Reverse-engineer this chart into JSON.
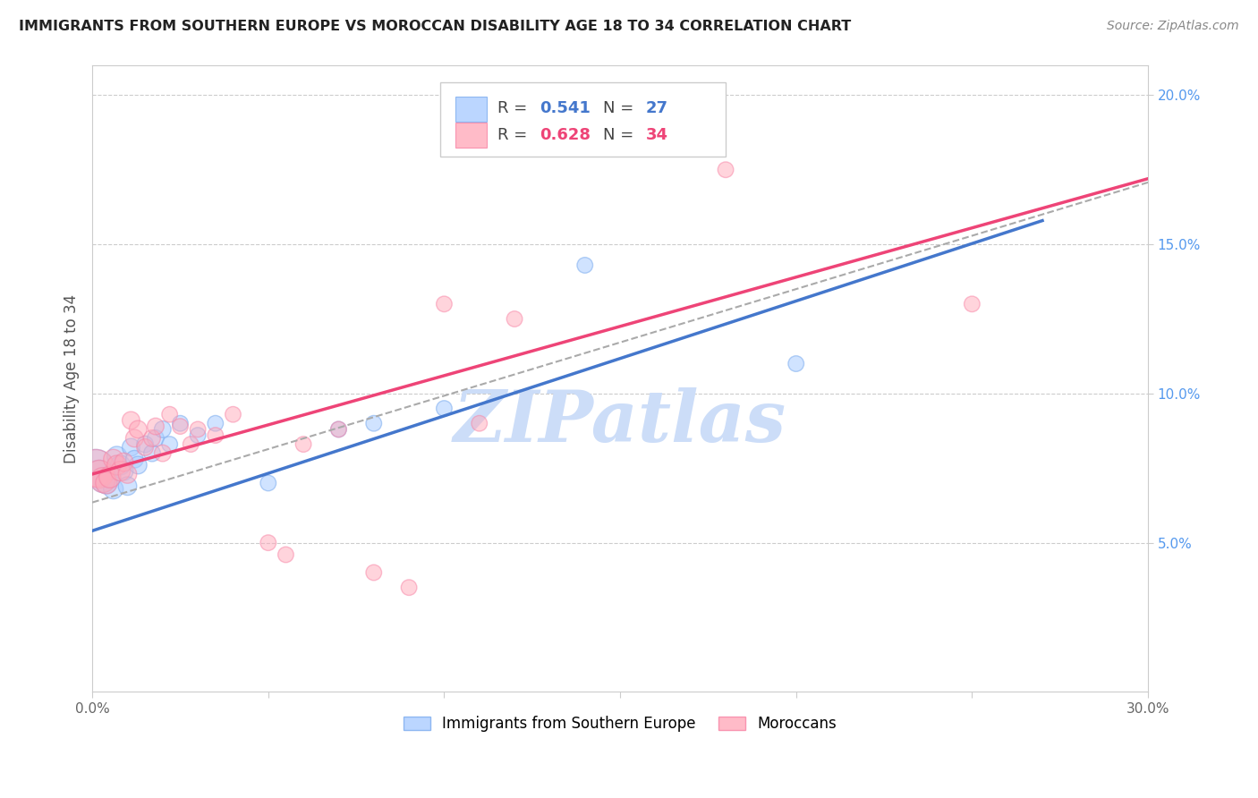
{
  "title": "IMMIGRANTS FROM SOUTHERN EUROPE VS MOROCCAN DISABILITY AGE 18 TO 34 CORRELATION CHART",
  "source": "Source: ZipAtlas.com",
  "ylabel": "Disability Age 18 to 34",
  "xlim": [
    0.0,
    0.3
  ],
  "ylim": [
    0.0,
    0.21
  ],
  "xticks": [
    0.0,
    0.05,
    0.1,
    0.15,
    0.2,
    0.25,
    0.3
  ],
  "xticklabels": [
    "0.0%",
    "",
    "",
    "",
    "",
    "",
    "30.0%"
  ],
  "yticks_left": [],
  "yticks_right": [
    0.05,
    0.1,
    0.15,
    0.2
  ],
  "yticklabels_right": [
    "5.0%",
    "10.0%",
    "15.0%",
    "20.0%"
  ],
  "legend1_r": "0.541",
  "legend1_n": "27",
  "legend2_r": "0.628",
  "legend2_n": "34",
  "blue_color": "#7aabee",
  "pink_color": "#f882a4",
  "blue_line_color": "#4477cc",
  "pink_line_color": "#ee4477",
  "blue_fill": "#aaccff",
  "pink_fill": "#ffaabb",
  "right_tick_color": "#5599ee",
  "watermark_color": "#ccddf8",
  "watermark_text": "ZIPatlas",
  "legend1_label": "Immigrants from Southern Europe",
  "legend2_label": "Moroccans",
  "blue_x": [
    0.001,
    0.002,
    0.003,
    0.004,
    0.005,
    0.006,
    0.007,
    0.008,
    0.009,
    0.01,
    0.011,
    0.012,
    0.013,
    0.015,
    0.017,
    0.018,
    0.02,
    0.022,
    0.025,
    0.03,
    0.035,
    0.05,
    0.07,
    0.08,
    0.1,
    0.14,
    0.2
  ],
  "blue_y": [
    0.075,
    0.073,
    0.071,
    0.07,
    0.072,
    0.068,
    0.079,
    0.076,
    0.074,
    0.069,
    0.082,
    0.078,
    0.076,
    0.083,
    0.08,
    0.085,
    0.088,
    0.083,
    0.09,
    0.086,
    0.09,
    0.07,
    0.088,
    0.09,
    0.095,
    0.143,
    0.11
  ],
  "blue_sizes": [
    900,
    500,
    400,
    300,
    300,
    250,
    250,
    250,
    220,
    220,
    200,
    200,
    200,
    180,
    180,
    180,
    180,
    160,
    160,
    160,
    160,
    160,
    160,
    160,
    160,
    160,
    160
  ],
  "pink_x": [
    0.001,
    0.002,
    0.003,
    0.004,
    0.005,
    0.006,
    0.007,
    0.008,
    0.009,
    0.01,
    0.011,
    0.012,
    0.013,
    0.015,
    0.017,
    0.018,
    0.02,
    0.022,
    0.025,
    0.028,
    0.03,
    0.035,
    0.04,
    0.05,
    0.055,
    0.06,
    0.07,
    0.08,
    0.09,
    0.1,
    0.11,
    0.12,
    0.18,
    0.25
  ],
  "pink_y": [
    0.075,
    0.073,
    0.071,
    0.07,
    0.072,
    0.078,
    0.076,
    0.074,
    0.077,
    0.073,
    0.091,
    0.085,
    0.088,
    0.082,
    0.085,
    0.089,
    0.08,
    0.093,
    0.089,
    0.083,
    0.088,
    0.086,
    0.093,
    0.05,
    0.046,
    0.083,
    0.088,
    0.04,
    0.035,
    0.13,
    0.09,
    0.125,
    0.175,
    0.13
  ],
  "pink_sizes": [
    900,
    500,
    400,
    300,
    300,
    250,
    250,
    250,
    220,
    220,
    200,
    200,
    200,
    180,
    180,
    180,
    180,
    160,
    160,
    160,
    160,
    160,
    160,
    160,
    160,
    160,
    160,
    160,
    160,
    160,
    160,
    160,
    160,
    160
  ],
  "blue_intercept": 0.054,
  "blue_slope": 0.385,
  "pink_intercept": 0.073,
  "pink_slope": 0.33,
  "grid_color": "#cccccc",
  "spine_color": "#cccccc"
}
